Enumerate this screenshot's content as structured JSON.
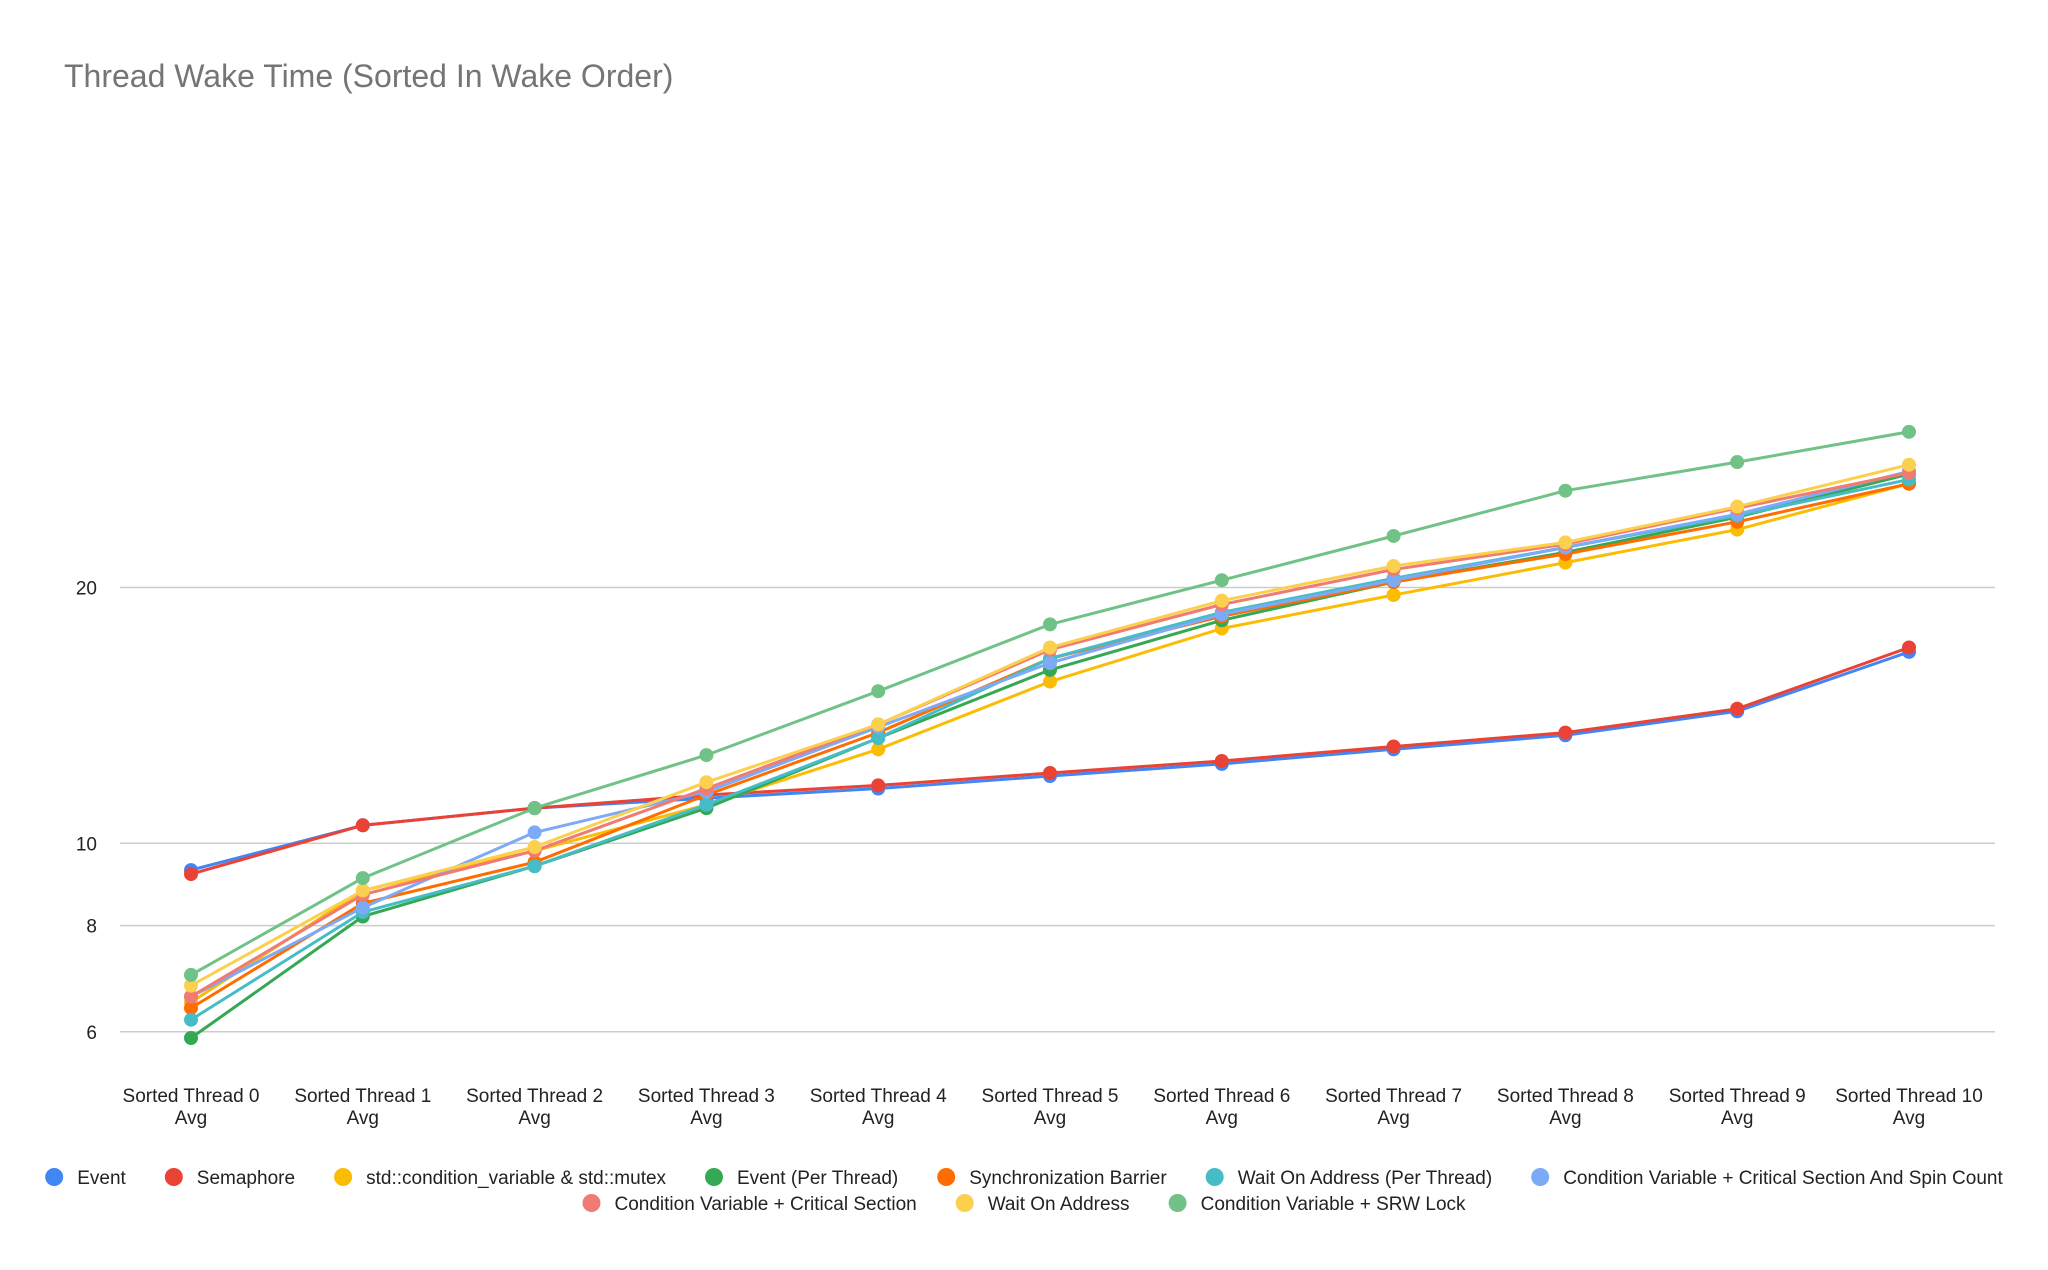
{
  "chart_data": {
    "type": "line",
    "title": "Thread Wake Time (Sorted In Wake Order)",
    "xlabel": "",
    "ylabel": "",
    "y_scale": "log",
    "ylim": [
      5.5,
      34
    ],
    "yticks": [
      "6",
      "8",
      "10",
      "20"
    ],
    "grid": true,
    "legend_position": "bottom",
    "categories": [
      [
        "Sorted Thread 0",
        "Avg"
      ],
      [
        "Sorted Thread 1",
        "Avg"
      ],
      [
        "Sorted Thread 2",
        "Avg"
      ],
      [
        "Sorted Thread 3",
        "Avg"
      ],
      [
        "Sorted Thread 4",
        "Avg"
      ],
      [
        "Sorted Thread 5",
        "Avg"
      ],
      [
        "Sorted Thread 6",
        "Avg"
      ],
      [
        "Sorted Thread 7",
        "Avg"
      ],
      [
        "Sorted Thread 8",
        "Avg"
      ],
      [
        "Sorted Thread 9",
        "Avg"
      ],
      [
        "Sorted Thread 10",
        "Avg"
      ]
    ],
    "series": [
      {
        "name": "Event",
        "color": "#4285F4",
        "values": [
          9.3,
          10.5,
          11.0,
          11.3,
          11.6,
          12.0,
          12.4,
          12.9,
          13.4,
          14.3,
          16.8
        ]
      },
      {
        "name": "Semaphore",
        "color": "#EA4335",
        "values": [
          9.2,
          10.5,
          11.0,
          11.4,
          11.7,
          12.1,
          12.5,
          13.0,
          13.5,
          14.4,
          17.0
        ]
      },
      {
        "name": "std::condition_variable & std::mutex",
        "color": "#FBBC04",
        "values": [
          6.5,
          8.8,
          9.8,
          11.1,
          12.9,
          15.5,
          17.9,
          19.6,
          21.4,
          23.4,
          26.5
        ]
      },
      {
        "name": "Event (Per Thread)",
        "color": "#34A853",
        "values": [
          5.9,
          8.2,
          9.4,
          11.0,
          13.3,
          16.0,
          18.3,
          20.3,
          22.0,
          24.2,
          27.2
        ]
      },
      {
        "name": "Synchronization Barrier",
        "color": "#FF6D01",
        "values": [
          6.4,
          8.5,
          9.5,
          11.4,
          13.5,
          16.5,
          18.5,
          20.3,
          21.9,
          23.9,
          26.5
        ]
      },
      {
        "name": "Wait On Address (Per Thread)",
        "color": "#46BDC6",
        "values": [
          6.2,
          8.3,
          9.4,
          11.1,
          13.3,
          16.5,
          18.7,
          20.5,
          22.3,
          24.3,
          26.8
        ]
      },
      {
        "name": "Condition Variable + Critical Section And Spin Count",
        "color": "#7BAAF7",
        "values": [
          6.6,
          8.4,
          10.3,
          11.5,
          13.7,
          16.3,
          18.6,
          20.4,
          22.3,
          24.4,
          27.4
        ]
      },
      {
        "name": "Condition Variable + Critical Section",
        "color": "#F07B72",
        "values": [
          6.6,
          8.7,
          9.8,
          11.6,
          13.8,
          16.9,
          19.1,
          21.0,
          22.5,
          24.8,
          27.3
        ]
      },
      {
        "name": "Wait On Address",
        "color": "#FCD04F",
        "values": [
          6.8,
          8.8,
          9.9,
          11.8,
          13.8,
          17.0,
          19.3,
          21.2,
          22.6,
          24.9,
          27.9
        ]
      },
      {
        "name": "Condition Variable + SRW Lock",
        "color": "#71C287",
        "values": [
          7.0,
          9.1,
          11.0,
          12.7,
          15.1,
          18.1,
          20.4,
          23.0,
          26.0,
          28.1,
          30.5
        ]
      }
    ]
  }
}
